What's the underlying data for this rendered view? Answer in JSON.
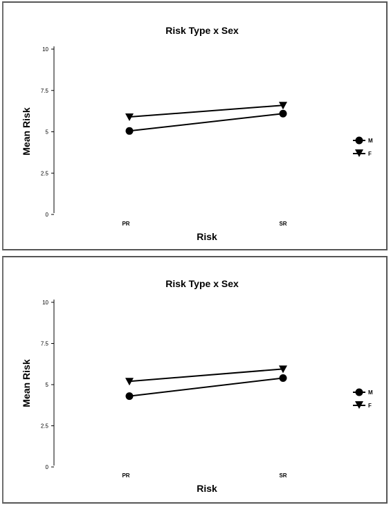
{
  "chart_data": [
    {
      "type": "line",
      "title": "Risk Type x Sex",
      "xlabel": "Risk",
      "ylabel": "Mean Risk",
      "categories": [
        "PR",
        "SR"
      ],
      "yticks": [
        "0",
        "2.5",
        "5",
        "7.5",
        "10"
      ],
      "ylim": [
        0,
        10
      ],
      "grid": false,
      "legend": "right",
      "series": [
        {
          "name": "M",
          "marker": "circle",
          "values": [
            5.05,
            6.1
          ]
        },
        {
          "name": "F",
          "marker": "triangle-down",
          "values": [
            5.9,
            6.6
          ]
        }
      ]
    },
    {
      "type": "line",
      "title": "Risk Type x Sex",
      "xlabel": "Risk",
      "ylabel": "Mean Risk",
      "categories": [
        "PR",
        "SR"
      ],
      "yticks": [
        "0",
        "2.5",
        "5",
        "7.5",
        "10"
      ],
      "ylim": [
        0,
        10
      ],
      "grid": false,
      "legend": "right",
      "series": [
        {
          "name": "M",
          "marker": "circle",
          "values": [
            4.3,
            5.4
          ]
        },
        {
          "name": "F",
          "marker": "triangle-down",
          "values": [
            5.2,
            5.95
          ]
        }
      ]
    }
  ]
}
